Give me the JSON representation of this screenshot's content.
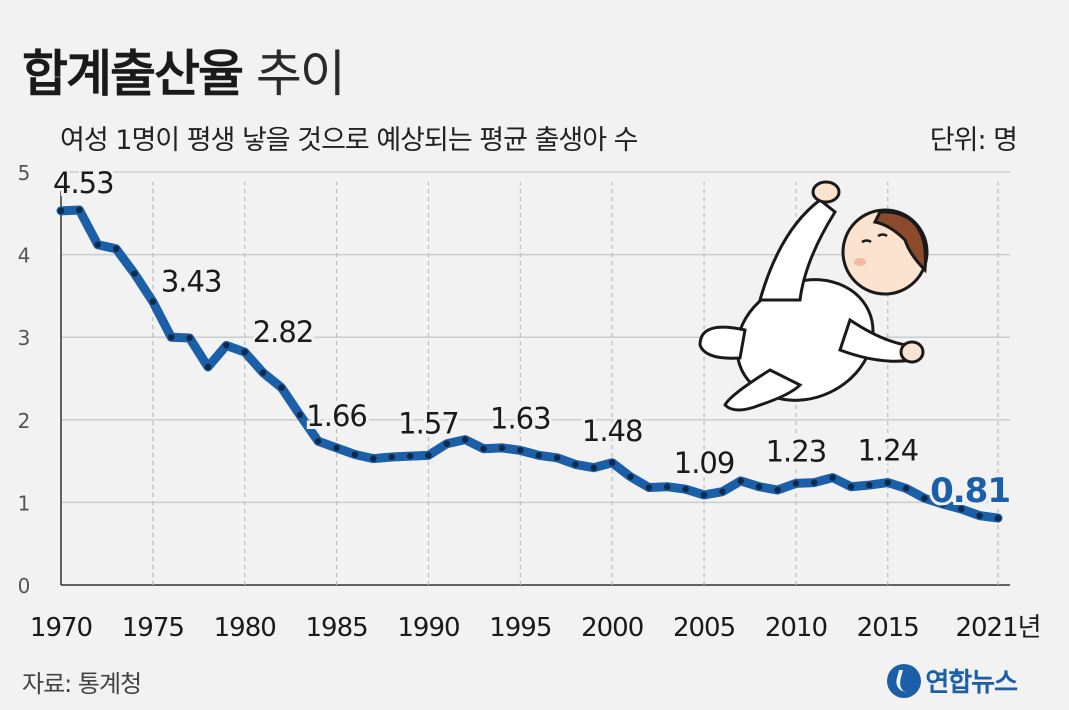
{
  "header": {
    "title_bold": "합계출산율",
    "title_light": "추이",
    "subtitle": "여성 1명이 평생 낳을 것으로 예상되는 평균 출생아 수",
    "unit": "단위: 명"
  },
  "footer": {
    "source": "자료: 통계청",
    "logo_text": "연합뉴스",
    "logo_icon": "yonhap-logo-icon"
  },
  "colors": {
    "line": "#1b5fa8",
    "dots": "#0d2a4a",
    "highlight": "#1b5fa8",
    "grid": "#cccccc"
  },
  "chart_data": {
    "type": "line",
    "title": "합계출산율 추이",
    "subtitle": "여성 1명이 평생 낳을 것으로 예상되는 평균 출생아 수",
    "ylabel": "단위: 명",
    "ylim": [
      0,
      5
    ],
    "yticks": [
      0,
      1,
      2,
      3,
      4,
      5
    ],
    "xticks": [
      "1970",
      "1975",
      "1980",
      "1985",
      "1990",
      "1995",
      "2000",
      "2005",
      "2010",
      "2015",
      "2021년"
    ],
    "xtick_years": [
      1970,
      1975,
      1980,
      1985,
      1990,
      1995,
      2000,
      2005,
      2010,
      2015,
      2021
    ],
    "grid": true,
    "series": [
      {
        "x": [
          1970,
          1971,
          1972,
          1973,
          1974,
          1975,
          1976,
          1977,
          1978,
          1979,
          1980,
          1981,
          1982,
          1983,
          1984,
          1985,
          1986,
          1987,
          1988,
          1989,
          1990,
          1991,
          1992,
          1993,
          1994,
          1995,
          1996,
          1997,
          1998,
          1999,
          2000,
          2001,
          2002,
          2003,
          2004,
          2005,
          2006,
          2007,
          2008,
          2009,
          2010,
          2011,
          2012,
          2013,
          2014,
          2015,
          2016,
          2017,
          2018,
          2019,
          2020,
          2021
        ],
        "values": [
          4.53,
          4.54,
          4.12,
          4.07,
          3.77,
          3.43,
          3.0,
          2.99,
          2.64,
          2.9,
          2.82,
          2.57,
          2.39,
          2.06,
          1.74,
          1.66,
          1.58,
          1.53,
          1.55,
          1.56,
          1.57,
          1.71,
          1.76,
          1.65,
          1.66,
          1.63,
          1.57,
          1.54,
          1.46,
          1.42,
          1.48,
          1.31,
          1.18,
          1.19,
          1.16,
          1.09,
          1.13,
          1.26,
          1.19,
          1.15,
          1.23,
          1.24,
          1.3,
          1.19,
          1.21,
          1.24,
          1.17,
          1.05,
          0.98,
          0.92,
          0.84,
          0.81
        ]
      }
    ],
    "annotations": [
      {
        "x": 1970,
        "value": 4.53,
        "label": "4.53"
      },
      {
        "x": 1975,
        "value": 3.43,
        "label": "3.43"
      },
      {
        "x": 1980,
        "value": 2.82,
        "label": "2.82"
      },
      {
        "x": 1985,
        "value": 1.66,
        "label": "1.66"
      },
      {
        "x": 1990,
        "value": 1.57,
        "label": "1.57"
      },
      {
        "x": 1995,
        "value": 1.63,
        "label": "1.63"
      },
      {
        "x": 2000,
        "value": 1.48,
        "label": "1.48"
      },
      {
        "x": 2005,
        "value": 1.09,
        "label": "1.09"
      },
      {
        "x": 2010,
        "value": 1.23,
        "label": "1.23"
      },
      {
        "x": 2015,
        "value": 1.24,
        "label": "1.24"
      },
      {
        "x": 2021,
        "value": 0.81,
        "label": "0.81",
        "highlight": true
      }
    ]
  }
}
